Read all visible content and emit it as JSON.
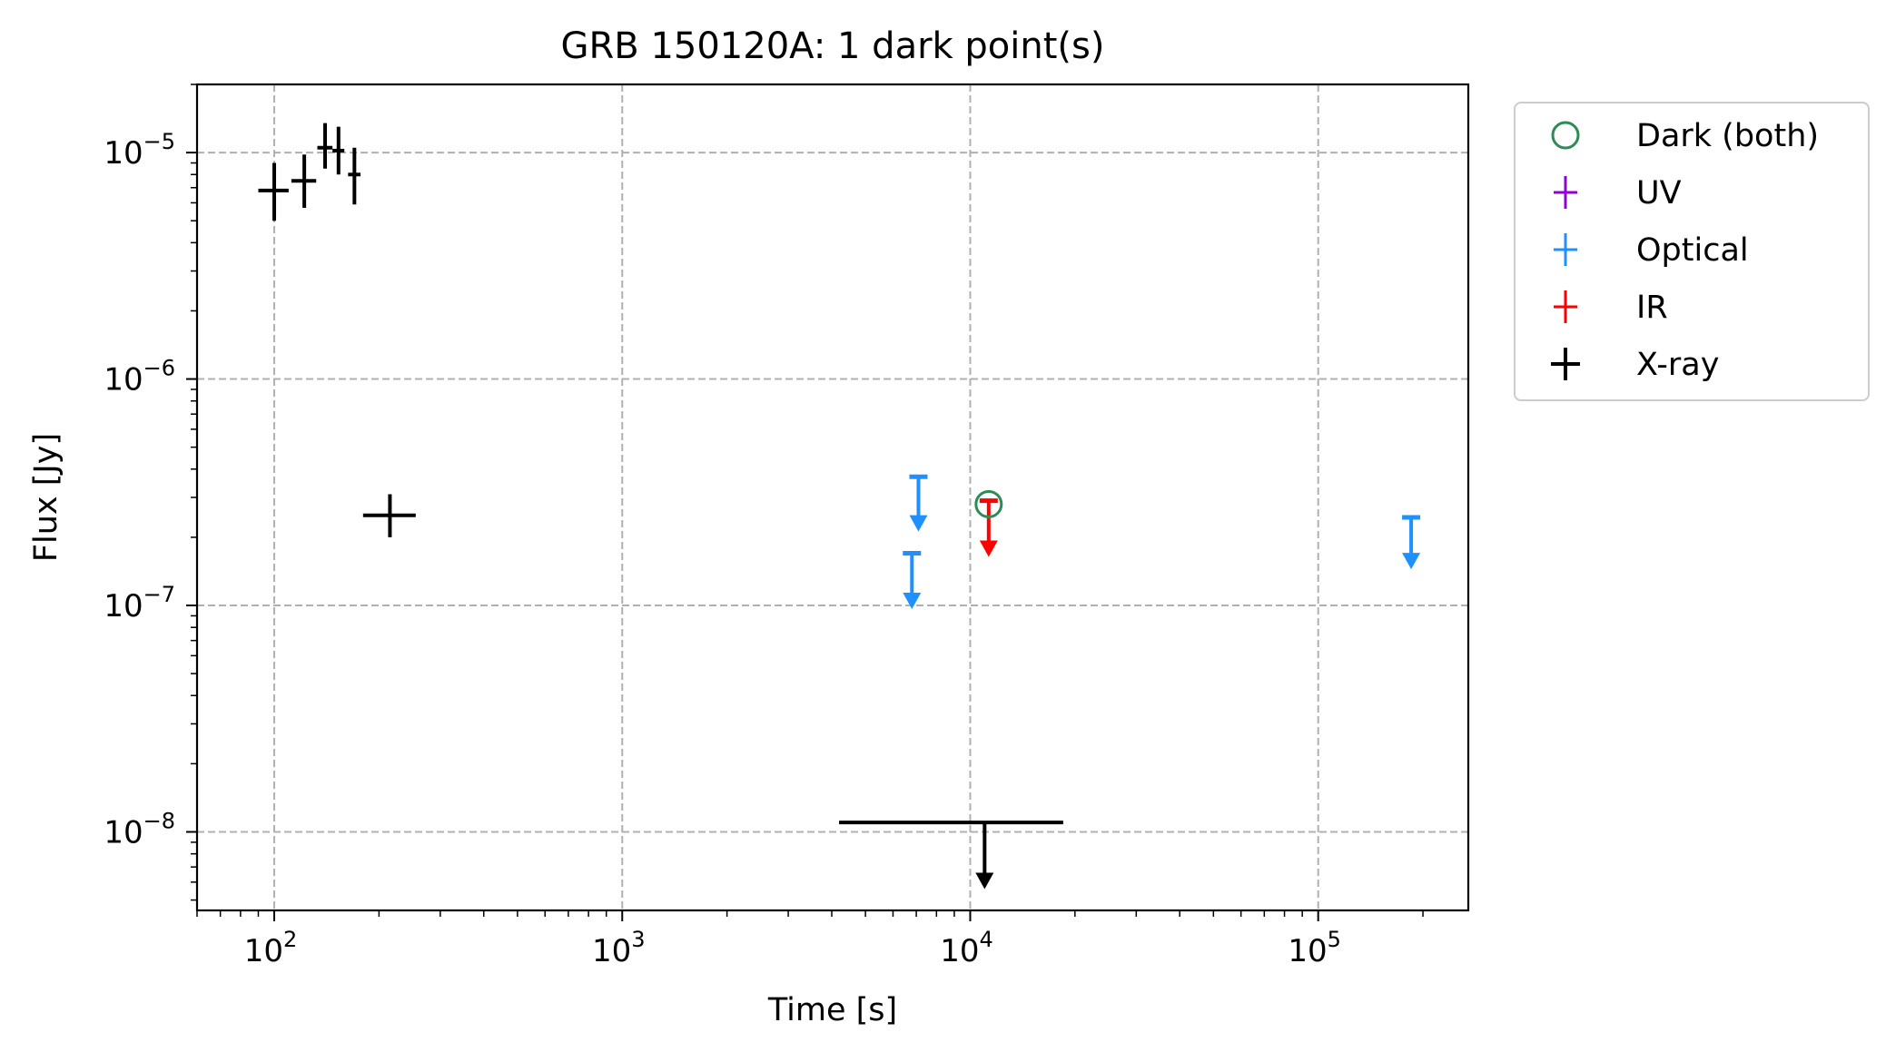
{
  "chart_data": {
    "type": "scatter",
    "title": "GRB 150120A: 1 dark point(s)",
    "xlabel": "Time [s]",
    "ylabel": "Flux [Jy]",
    "xscale": "log",
    "yscale": "log",
    "xlim": [
      60,
      270000
    ],
    "ylim": [
      4.5e-09,
      2e-05
    ],
    "grid": true,
    "legend_placement": "outside-upper-right",
    "x_ticks": [
      {
        "value": 100,
        "base": "10",
        "exp": "2"
      },
      {
        "value": 1000,
        "base": "10",
        "exp": "3"
      },
      {
        "value": 10000,
        "base": "10",
        "exp": "4"
      },
      {
        "value": 100000,
        "base": "10",
        "exp": "5"
      }
    ],
    "y_ticks": [
      {
        "value": 1e-08,
        "base": "10",
        "exp": "−8"
      },
      {
        "value": 1e-07,
        "base": "10",
        "exp": "−7"
      },
      {
        "value": 1e-06,
        "base": "10",
        "exp": "−6"
      },
      {
        "value": 1e-05,
        "base": "10",
        "exp": "−5"
      }
    ],
    "legend": [
      {
        "label": "Dark (both)",
        "color": "#2e8b57",
        "marker": "open-circle"
      },
      {
        "label": "UV",
        "color": "#9400d3",
        "marker": "errorbar"
      },
      {
        "label": "Optical",
        "color": "#1e90ff",
        "marker": "errorbar"
      },
      {
        "label": "IR",
        "color": "#ff0000",
        "marker": "errorbar"
      },
      {
        "label": "X-ray",
        "color": "#000000",
        "marker": "errorbar"
      }
    ],
    "series": [
      {
        "name": "X-ray",
        "color": "#000000",
        "points": [
          {
            "x": 100,
            "y": 6.8e-06,
            "xerr": [
              90,
              110
            ],
            "yerr": [
              5e-06,
              9e-06
            ]
          },
          {
            "x": 122,
            "y": 7.5e-06,
            "xerr": [
              112,
              132
            ],
            "yerr": [
              5.7e-06,
              9.8e-06
            ]
          },
          {
            "x": 140,
            "y": 1.05e-05,
            "xerr": [
              133,
              147
            ],
            "yerr": [
              8.5e-06,
              1.35e-05
            ]
          },
          {
            "x": 153,
            "y": 1.02e-05,
            "xerr": [
              147,
              159
            ],
            "yerr": [
              8e-06,
              1.3e-05
            ]
          },
          {
            "x": 170,
            "y": 8e-06,
            "xerr": [
              163,
              177
            ],
            "yerr": [
              5.9e-06,
              1.05e-05
            ]
          },
          {
            "x": 215,
            "y": 2.5e-07,
            "xerr": [
              180,
              255
            ],
            "yerr": [
              2e-07,
              3.1e-07
            ]
          },
          {
            "x": 11000,
            "y": 1.1e-08,
            "xerr": [
              4200,
              18500
            ],
            "upper_limit": true,
            "arrow_to": 5.8e-09
          }
        ]
      },
      {
        "name": "Optical",
        "color": "#1e90ff",
        "points": [
          {
            "x": 7100,
            "y": 3.7e-07,
            "upper_limit": true,
            "arrow_to": 2.2e-07
          },
          {
            "x": 6800,
            "y": 1.7e-07,
            "upper_limit": true,
            "arrow_to": 1e-07
          },
          {
            "x": 185000,
            "y": 2.45e-07,
            "upper_limit": true,
            "arrow_to": 1.5e-07
          }
        ]
      },
      {
        "name": "IR",
        "color": "#ff0000",
        "points": [
          {
            "x": 11300,
            "y": 2.9e-07,
            "upper_limit": true,
            "arrow_to": 1.7e-07
          }
        ]
      },
      {
        "name": "Dark (both)",
        "color": "#2e8b57",
        "points": [
          {
            "x": 11300,
            "y": 2.8e-07
          }
        ]
      }
    ]
  }
}
